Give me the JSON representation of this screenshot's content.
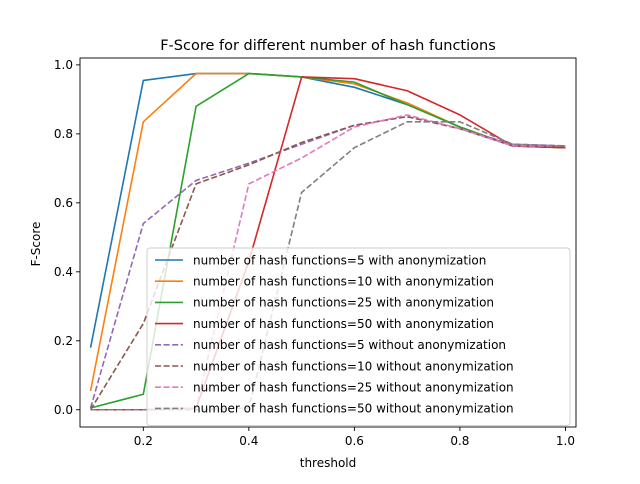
{
  "chart_data": {
    "type": "line",
    "title": "F-Score for different number of hash functions",
    "xlabel": "threshold",
    "ylabel": "F-Score",
    "xlim": [
      0.08,
      1.02
    ],
    "ylim": [
      -0.05,
      1.02
    ],
    "xticks": [
      "0.2",
      "0.4",
      "0.6",
      "0.8",
      "1.0"
    ],
    "xtick_values": [
      0.2,
      0.4,
      0.6,
      0.8,
      1.0
    ],
    "yticks": [
      "0.0",
      "0.2",
      "0.4",
      "0.6",
      "0.8",
      "1.0"
    ],
    "ytick_values": [
      0.0,
      0.2,
      0.4,
      0.6,
      0.8,
      1.0
    ],
    "grid": false,
    "legend_position": "lower-right",
    "x": [
      0.1,
      0.2,
      0.3,
      0.4,
      0.5,
      0.6,
      0.7,
      0.8,
      0.9,
      1.0
    ],
    "series": [
      {
        "name": "number of hash functions=5 with anonymization",
        "color": "#1f77b4",
        "style": "solid",
        "values": [
          0.18,
          0.955,
          0.975,
          0.975,
          0.965,
          0.935,
          0.885,
          0.82,
          0.765,
          0.76
        ]
      },
      {
        "name": "number of hash functions=10 with anonymization",
        "color": "#ff7f0e",
        "style": "solid",
        "values": [
          0.055,
          0.835,
          0.975,
          0.975,
          0.965,
          0.945,
          0.89,
          0.82,
          0.765,
          0.76
        ]
      },
      {
        "name": "number of hash functions=25 with anonymization",
        "color": "#2ca02c",
        "style": "solid",
        "values": [
          0.005,
          0.045,
          0.88,
          0.975,
          0.965,
          0.95,
          0.885,
          0.82,
          0.765,
          0.76
        ]
      },
      {
        "name": "number of hash functions=50 with anonymization",
        "color": "#d62728",
        "style": "solid",
        "values": [
          0.0,
          0.0,
          0.005,
          0.43,
          0.965,
          0.96,
          0.925,
          0.855,
          0.765,
          0.76
        ]
      },
      {
        "name": "number of hash functions=5 without anonymization",
        "color": "#9467bd",
        "style": "dashed",
        "values": [
          0.005,
          0.54,
          0.665,
          0.715,
          0.77,
          0.825,
          0.85,
          0.815,
          0.77,
          0.765
        ]
      },
      {
        "name": "number of hash functions=10 without anonymization",
        "color": "#8c564b",
        "style": "dashed",
        "values": [
          0.0,
          0.25,
          0.655,
          0.71,
          0.775,
          0.825,
          0.85,
          0.815,
          0.765,
          0.765
        ]
      },
      {
        "name": "number of hash functions=25 without anonymization",
        "color": "#e377c2",
        "style": "dashed",
        "values": [
          0.0,
          0.0,
          0.005,
          0.655,
          0.73,
          0.82,
          0.855,
          0.815,
          0.765,
          0.765
        ]
      },
      {
        "name": "number of hash functions=50 without anonymization",
        "color": "#7f7f7f",
        "style": "dashed",
        "values": [
          0.0,
          0.0,
          0.0,
          0.005,
          0.63,
          0.76,
          0.835,
          0.835,
          0.77,
          0.765
        ]
      }
    ]
  }
}
